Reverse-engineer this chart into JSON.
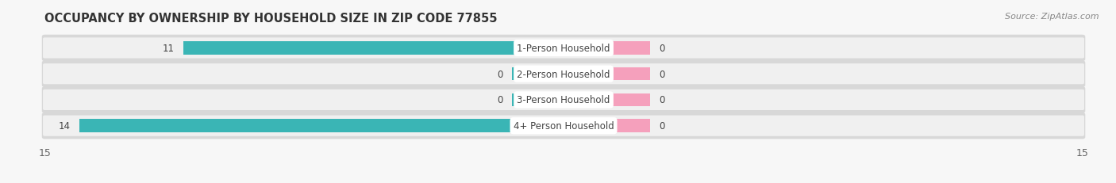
{
  "title": "OCCUPANCY BY OWNERSHIP BY HOUSEHOLD SIZE IN ZIP CODE 77855",
  "source": "Source: ZipAtlas.com",
  "categories": [
    "1-Person Household",
    "2-Person Household",
    "3-Person Household",
    "4+ Person Household"
  ],
  "owner_values": [
    11,
    0,
    0,
    14
  ],
  "renter_values": [
    0,
    0,
    0,
    0
  ],
  "owner_color": "#3ab5b5",
  "renter_color": "#f5a0bc",
  "row_outer_color": "#d8d8d8",
  "row_inner_color": "#f0f0f0",
  "bg_color": "#f7f7f7",
  "xlim": 15,
  "renter_stub": 2.5,
  "owner_stub": 1.5,
  "title_fontsize": 10.5,
  "source_fontsize": 8,
  "tick_fontsize": 9,
  "legend_fontsize": 9,
  "label_fontsize": 8.5,
  "value_fontsize": 8.5
}
